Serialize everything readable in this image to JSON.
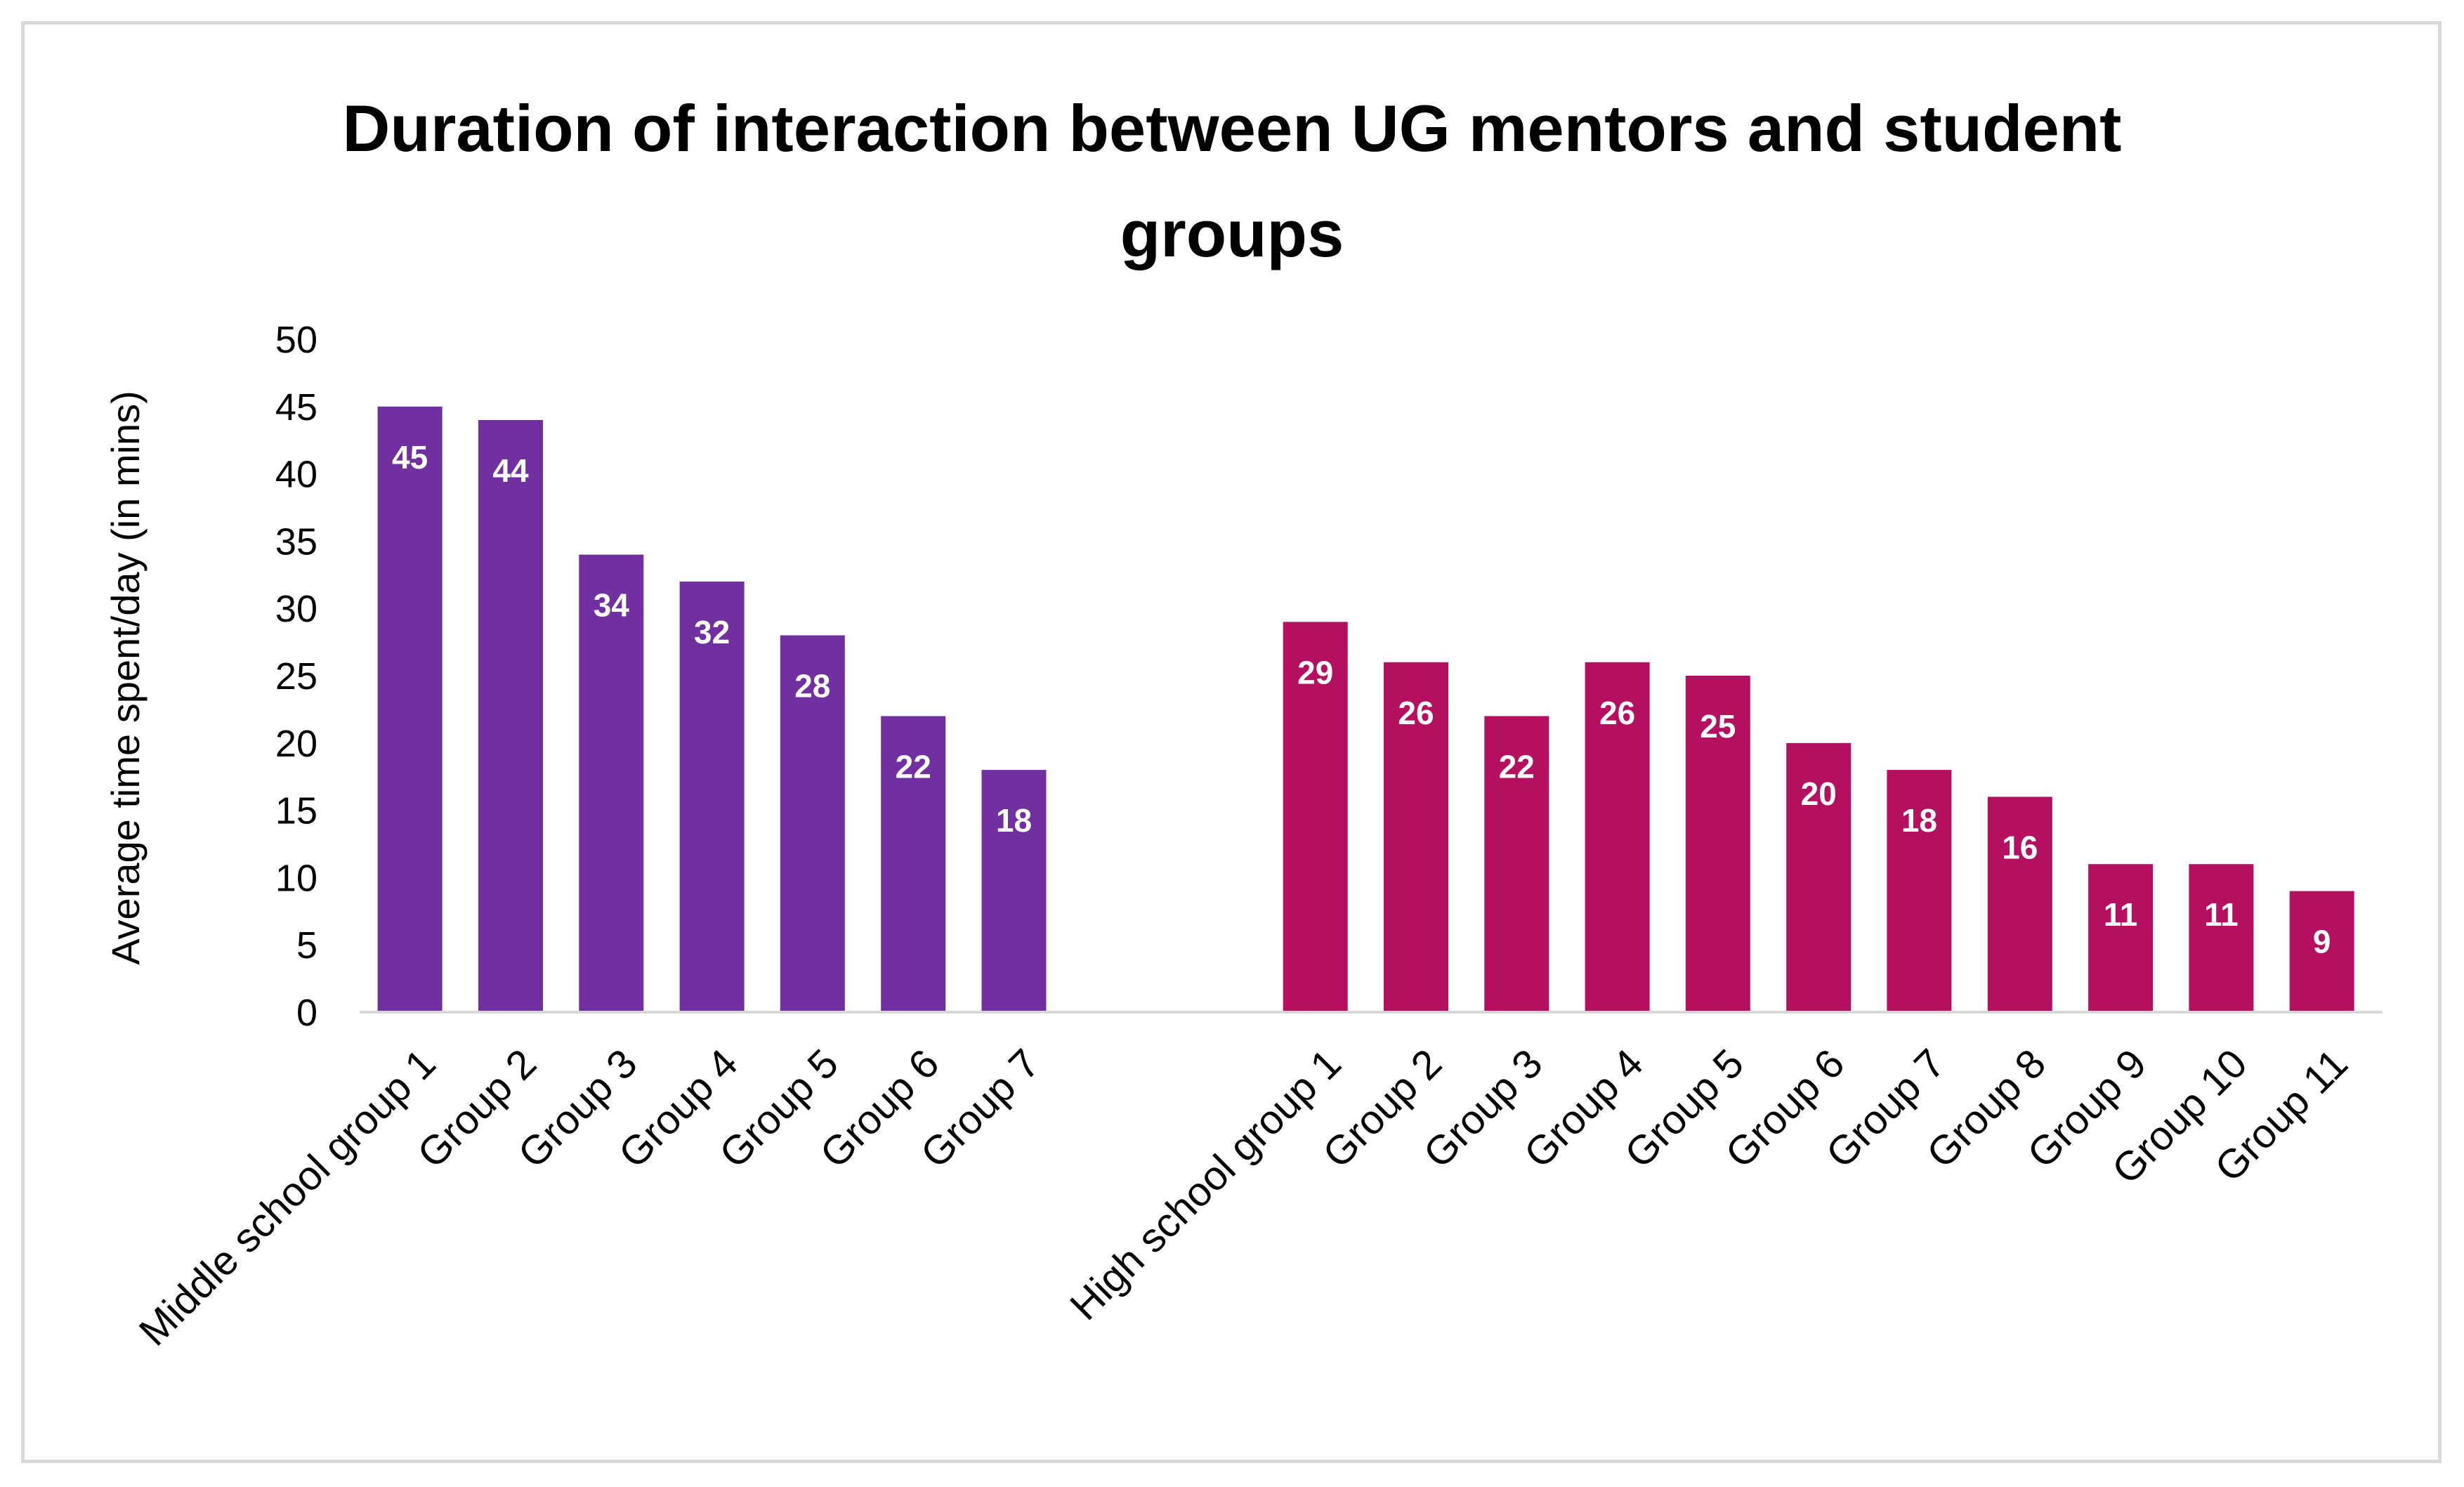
{
  "chart_data": {
    "type": "bar",
    "title": "Duration of interaction between UG mentors and student groups",
    "ylabel": "Average time spent/day (in mins)",
    "xlabel": "",
    "ylim": [
      0,
      50
    ],
    "ytick_step": 5,
    "grid": false,
    "legend": "none",
    "series": [
      {
        "name": "Middle school",
        "color": "#7030a0",
        "categories": [
          "Middle school group 1",
          "Group 2",
          "Group 3",
          "Group 4",
          "Group 5",
          "Group 6",
          "Group 7"
        ],
        "values": [
          45,
          44,
          34,
          32,
          28,
          22,
          18
        ]
      },
      {
        "name": "High school",
        "color": "#b5105f",
        "categories": [
          "High school group 1",
          "Group 2",
          "Group 3",
          "Group 4",
          "Group 5",
          "Group 6",
          "Group 7",
          "Group 8",
          "Group 9",
          "Group 10",
          "Group 11"
        ],
        "values": [
          29,
          26,
          22,
          26,
          25,
          20,
          18,
          16,
          11,
          11,
          9
        ]
      }
    ]
  }
}
